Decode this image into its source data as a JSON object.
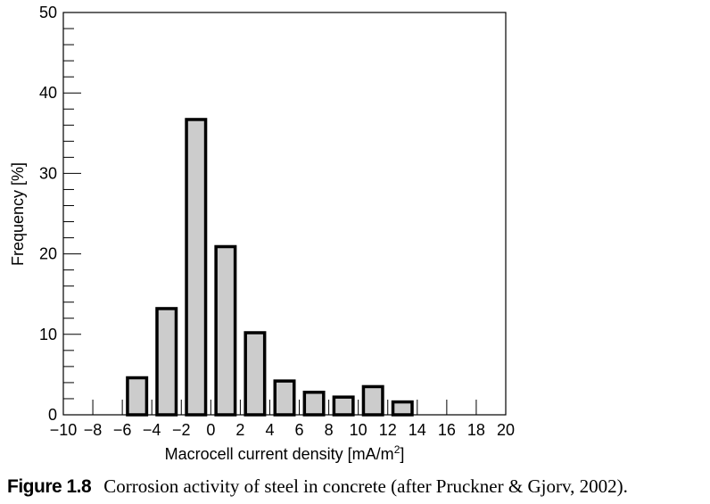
{
  "chart_data": {
    "type": "bar",
    "xlabel": "Macrocell current density [mA/m",
    "xlabel_sup": "2",
    "xlabel_close": "]",
    "ylabel": "Frequency [%]",
    "xlim": [
      -10,
      20
    ],
    "ylim": [
      0,
      50
    ],
    "x_ticks": [
      "−10",
      "−8",
      "−6",
      "−4",
      "−2",
      "0",
      "2",
      "4",
      "6",
      "8",
      "10",
      "12",
      "14",
      "16",
      "18",
      "20"
    ],
    "y_ticks": [
      "0",
      "10",
      "20",
      "30",
      "40",
      "50"
    ],
    "bin_width": 2,
    "bar_color": "#cccccc",
    "bar_edge_color": "#000000",
    "bins": [
      {
        "from": -6,
        "to": -4,
        "value": 4.6
      },
      {
        "from": -4,
        "to": -2,
        "value": 13.2
      },
      {
        "from": -2,
        "to": 0,
        "value": 36.7
      },
      {
        "from": 0,
        "to": 2,
        "value": 20.9
      },
      {
        "from": 2,
        "to": 4,
        "value": 10.2
      },
      {
        "from": 4,
        "to": 6,
        "value": 4.2
      },
      {
        "from": 6,
        "to": 8,
        "value": 2.8
      },
      {
        "from": 8,
        "to": 10,
        "value": 2.2
      },
      {
        "from": 10,
        "to": 12,
        "value": 3.5
      },
      {
        "from": 12,
        "to": 14,
        "value": 1.6
      }
    ],
    "grid": false,
    "legend": "none"
  },
  "caption": {
    "label": "Figure 1.8",
    "text": "Corrosion activity of steel in concrete (after Pruckner & Gjorv, 2002)."
  }
}
